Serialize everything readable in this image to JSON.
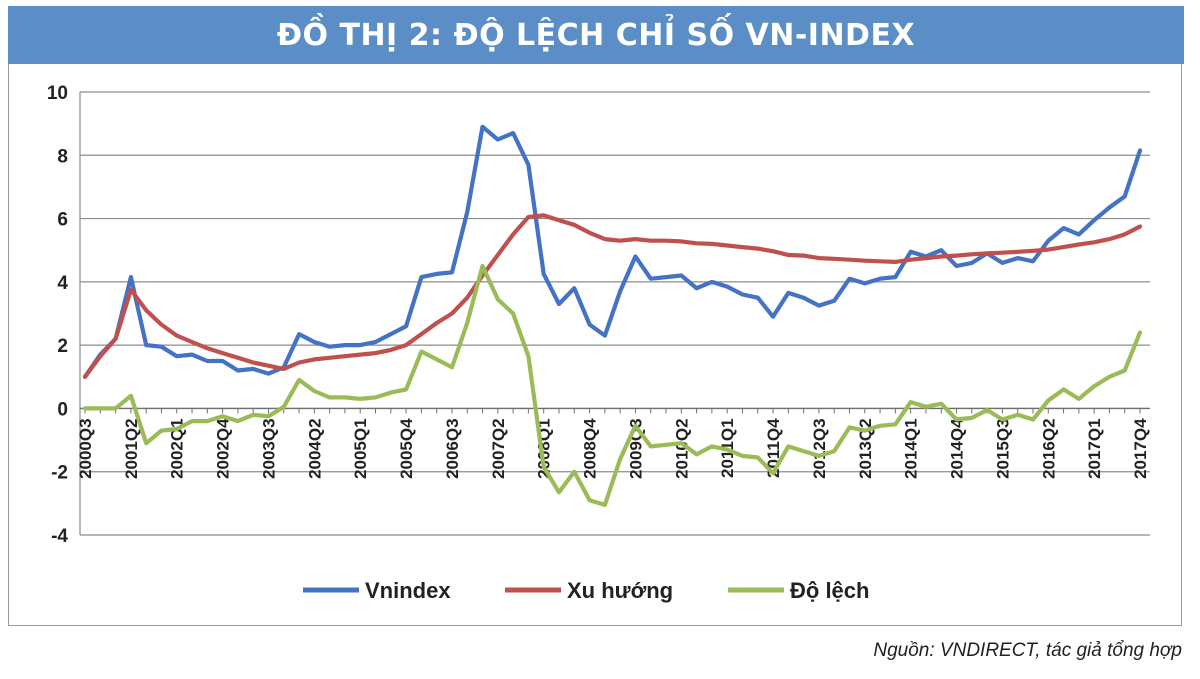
{
  "header": {
    "title": "ĐỒ THỊ 2: ĐỘ LỆCH CHỈ SỐ VN-INDEX"
  },
  "source": {
    "text": "Nguồn: VNDIRECT, tác giả tổng hợp"
  },
  "chart_data": {
    "type": "line",
    "title": "ĐỒ THỊ 2: ĐỘ LỆCH CHỈ SỐ VN-INDEX",
    "xlabel": "",
    "ylabel": "",
    "ylim": [
      -4,
      10
    ],
    "yticks": [
      -4,
      -2,
      0,
      2,
      4,
      6,
      8,
      10
    ],
    "grid": true,
    "legend_position": "bottom",
    "x": [
      "2000Q3",
      "2000Q4",
      "2001Q1",
      "2001Q2",
      "2001Q3",
      "2001Q4",
      "2002Q1",
      "2002Q2",
      "2002Q3",
      "2002Q4",
      "2003Q1",
      "2003Q2",
      "2003Q3",
      "2003Q4",
      "2004Q1",
      "2004Q2",
      "2004Q3",
      "2004Q4",
      "2005Q1",
      "2005Q2",
      "2005Q3",
      "2005Q4",
      "2006Q1",
      "2006Q2",
      "2006Q3",
      "2006Q4",
      "2007Q1",
      "2007Q2",
      "2007Q3",
      "2007Q4",
      "2008Q1",
      "2008Q2",
      "2008Q3",
      "2008Q4",
      "2009Q1",
      "2009Q2",
      "2009Q3",
      "2009Q4",
      "2010Q1",
      "2010Q2",
      "2010Q3",
      "2010Q4",
      "2011Q1",
      "2011Q2",
      "2011Q3",
      "2011Q4",
      "2012Q1",
      "2012Q2",
      "2012Q3",
      "2012Q4",
      "2013Q1",
      "2013Q2",
      "2013Q3",
      "2013Q4",
      "2014Q1",
      "2014Q2",
      "2014Q3",
      "2014Q4",
      "2015Q1",
      "2015Q2",
      "2015Q3",
      "2015Q4",
      "2016Q1",
      "2016Q2",
      "2016Q3",
      "2016Q4",
      "2017Q1",
      "2017Q2",
      "2017Q3",
      "2017Q4"
    ],
    "x_tick_labels": [
      "2000Q3",
      "2001Q2",
      "2002Q1",
      "2002Q4",
      "2003Q3",
      "2004Q2",
      "2005Q1",
      "2005Q4",
      "2006Q3",
      "2007Q2",
      "2008Q1",
      "2008Q4",
      "2009Q3",
      "2010Q2",
      "2011Q1",
      "2011Q4",
      "2012Q3",
      "2013Q2",
      "2014Q1",
      "2014Q4",
      "2015Q3",
      "2016Q2",
      "2017Q1",
      "2017Q4"
    ],
    "series": [
      {
        "name": "Vnindex",
        "color": "#4472c4",
        "values": [
          1.0,
          1.7,
          2.2,
          4.15,
          2.0,
          1.95,
          1.65,
          1.7,
          1.5,
          1.5,
          1.2,
          1.25,
          1.1,
          1.3,
          2.35,
          2.1,
          1.95,
          2.0,
          2.0,
          2.1,
          2.35,
          2.6,
          4.15,
          4.25,
          4.3,
          6.2,
          8.9,
          8.5,
          8.7,
          7.7,
          4.25,
          3.3,
          3.8,
          2.65,
          2.3,
          3.7,
          4.8,
          4.1,
          4.15,
          4.2,
          3.8,
          4.0,
          3.85,
          3.6,
          3.5,
          2.9,
          3.65,
          3.5,
          3.25,
          3.4,
          4.1,
          3.95,
          4.1,
          4.15,
          4.95,
          4.8,
          5.0,
          4.5,
          4.6,
          4.9,
          4.6,
          4.75,
          4.65,
          5.3,
          5.7,
          5.5,
          5.95,
          6.35,
          6.7,
          8.15
        ]
      },
      {
        "name": "Xu hướng",
        "color": "#c0504d",
        "values": [
          1.0,
          1.65,
          2.2,
          3.75,
          3.1,
          2.65,
          2.3,
          2.1,
          1.9,
          1.75,
          1.6,
          1.45,
          1.35,
          1.25,
          1.45,
          1.55,
          1.6,
          1.65,
          1.7,
          1.75,
          1.85,
          2.0,
          2.35,
          2.7,
          3.0,
          3.5,
          4.2,
          4.85,
          5.5,
          6.05,
          6.1,
          5.95,
          5.8,
          5.55,
          5.35,
          5.3,
          5.35,
          5.3,
          5.3,
          5.28,
          5.22,
          5.2,
          5.15,
          5.1,
          5.05,
          4.97,
          4.85,
          4.83,
          4.75,
          4.73,
          4.7,
          4.67,
          4.65,
          4.63,
          4.7,
          4.75,
          4.8,
          4.83,
          4.87,
          4.9,
          4.92,
          4.95,
          4.98,
          5.02,
          5.1,
          5.18,
          5.25,
          5.35,
          5.5,
          5.75
        ]
      },
      {
        "name": "Độ lệch",
        "color": "#9bbb59",
        "values": [
          0.0,
          0.0,
          0.0,
          0.4,
          -1.1,
          -0.7,
          -0.65,
          -0.4,
          -0.4,
          -0.25,
          -0.4,
          -0.2,
          -0.25,
          0.05,
          0.9,
          0.55,
          0.35,
          0.35,
          0.3,
          0.35,
          0.5,
          0.6,
          1.8,
          1.55,
          1.3,
          2.7,
          4.5,
          3.45,
          3.0,
          1.65,
          -1.85,
          -2.65,
          -2.0,
          -2.9,
          -3.05,
          -1.6,
          -0.55,
          -1.2,
          -1.15,
          -1.1,
          -1.45,
          -1.2,
          -1.3,
          -1.5,
          -1.55,
          -2.05,
          -1.2,
          -1.35,
          -1.5,
          -1.35,
          -0.6,
          -0.7,
          -0.55,
          -0.5,
          0.2,
          0.05,
          0.15,
          -0.35,
          -0.3,
          -0.05,
          -0.35,
          -0.2,
          -0.35,
          0.25,
          0.6,
          0.3,
          0.7,
          1.0,
          1.2,
          2.4
        ]
      }
    ]
  }
}
